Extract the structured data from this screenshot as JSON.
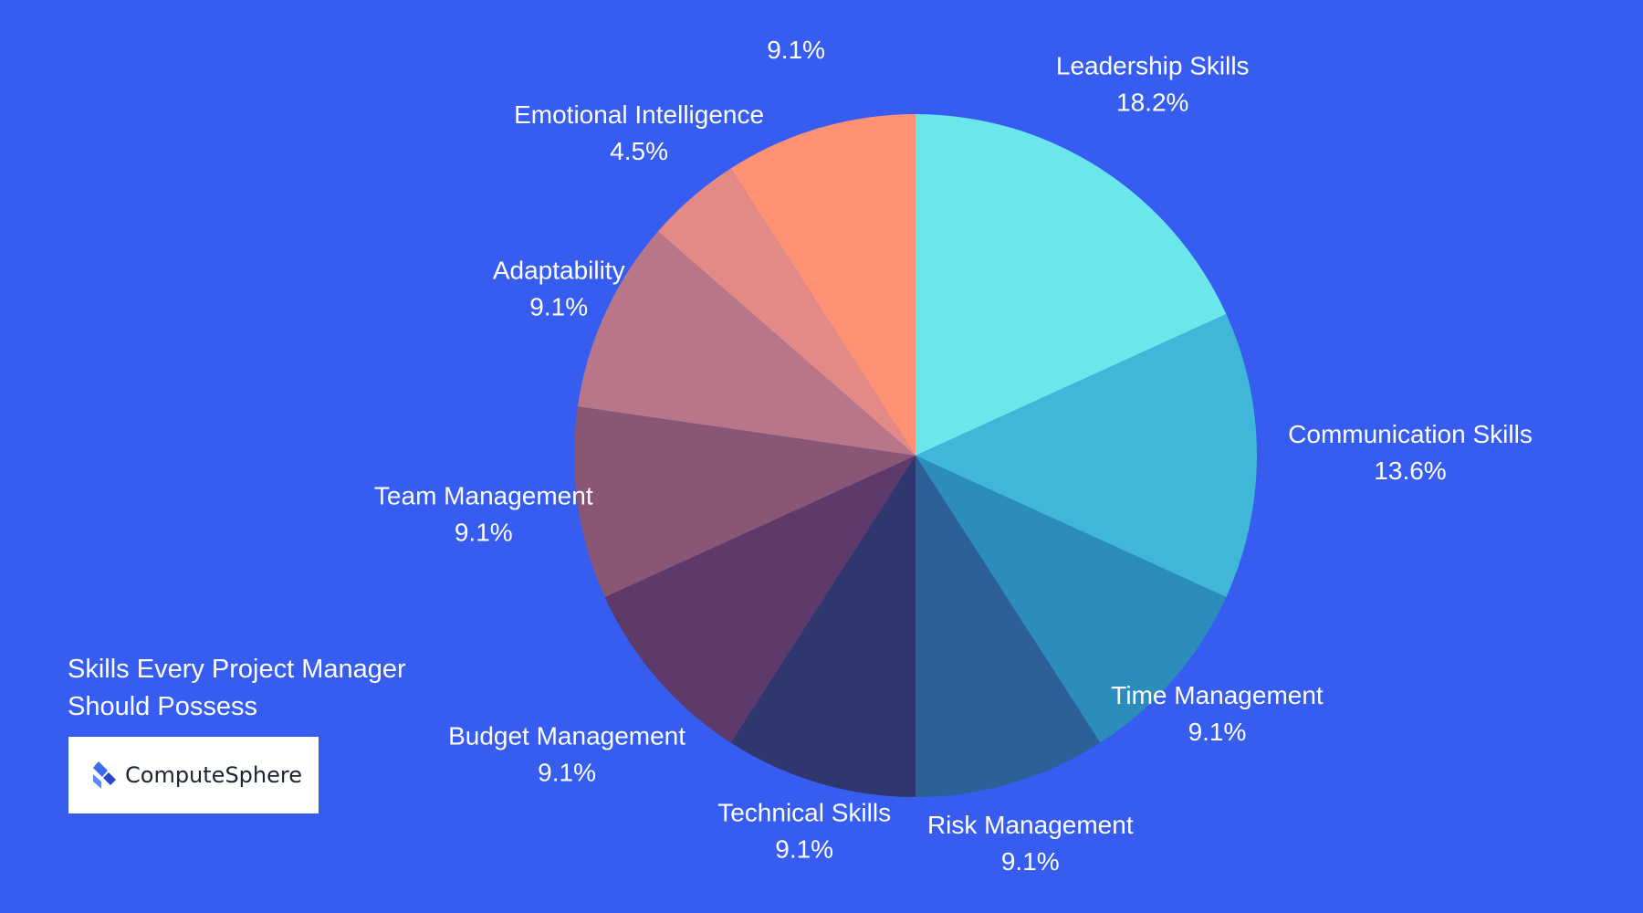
{
  "chart_data": {
    "type": "pie",
    "title": "Skills Every Project Manager Should Possess",
    "slices": [
      {
        "label": "Leadership Skills",
        "pct_label": "18.2%",
        "value": 18.2,
        "color": "#6be6ea"
      },
      {
        "label": "Communication Skills",
        "pct_label": "13.6%",
        "value": 13.6,
        "color": "#40b6d8"
      },
      {
        "label": "Time Management",
        "pct_label": "9.1%",
        "value": 9.1,
        "color": "#2c8dbd"
      },
      {
        "label": "Risk Management",
        "pct_label": "9.1%",
        "value": 9.1,
        "color": "#2d5f99"
      },
      {
        "label": "Technical Skills",
        "pct_label": "9.1%",
        "value": 9.1,
        "color": "#2f376e"
      },
      {
        "label": "Budget Management",
        "pct_label": "9.1%",
        "value": 9.1,
        "color": "#5d3a6a"
      },
      {
        "label": "Team Management",
        "pct_label": "9.1%",
        "value": 9.1,
        "color": "#8a5675"
      },
      {
        "label": "Adaptability",
        "pct_label": "9.1%",
        "value": 9.1,
        "color": "#b87688"
      },
      {
        "label": "Emotional Intelligence",
        "pct_label": "4.5%",
        "value": 4.5,
        "color": "#e38a87"
      },
      {
        "label": "",
        "pct_label": "9.1%",
        "value": 9.1,
        "color": "#ff9274"
      }
    ]
  },
  "header": {
    "title": "Skills Every Project Manager Should Possess"
  },
  "brand": {
    "name": "ComputeSphere",
    "icon": "computesphere-logo-icon",
    "accent": "#365cf0"
  }
}
